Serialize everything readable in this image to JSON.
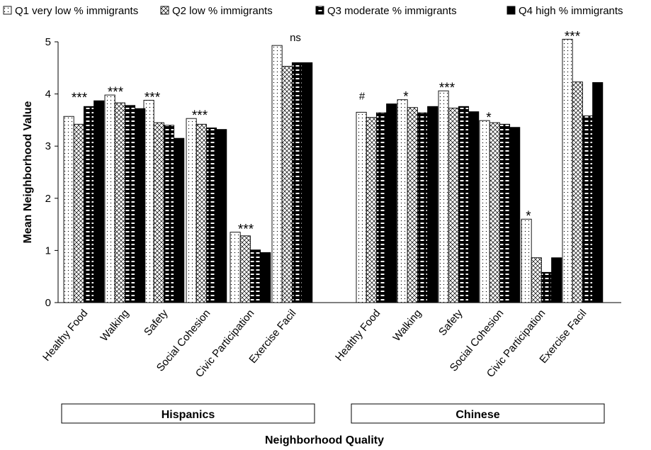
{
  "chart_data": {
    "type": "bar",
    "ylabel": "Mean Neighborhood Value",
    "xlabel": "Neighborhood Quality",
    "ylim": [
      0,
      5
    ],
    "yticks": [
      "0",
      "1",
      "2",
      "3",
      "4",
      "5"
    ],
    "legend_position": "top",
    "groups": [
      {
        "name": "Hispanics",
        "categories": [
          "Healthy Food",
          "Walking",
          "Safety",
          "Social Cohesion",
          "Civic Participation",
          "Exercise Facil"
        ],
        "annotations": [
          "***",
          "***",
          "***",
          "***",
          "***",
          "ns"
        ]
      },
      {
        "name": "Chinese",
        "categories": [
          "Healthy Food",
          "Walking",
          "Safety",
          "Social Cohesion",
          "Civic Participation",
          "Exercise Facil"
        ],
        "annotations": [
          "#",
          "*",
          "***",
          "*",
          "*",
          "***"
        ]
      }
    ],
    "series": [
      {
        "name": "Q1 very low % immigrants",
        "pattern": "dots",
        "values": [
          3.57,
          3.98,
          3.88,
          3.53,
          1.35,
          4.93,
          3.65,
          3.89,
          4.06,
          3.49,
          1.6,
          5.05
        ]
      },
      {
        "name": "Q2 low % immigrants",
        "pattern": "crosshatch",
        "values": [
          3.42,
          3.83,
          3.45,
          3.42,
          1.28,
          4.53,
          3.55,
          3.74,
          3.73,
          3.45,
          0.86,
          4.23
        ]
      },
      {
        "name": "Q3 moderate % immigrants",
        "pattern": "dashes",
        "values": [
          3.76,
          3.78,
          3.4,
          3.35,
          1.01,
          4.6,
          3.64,
          3.64,
          3.76,
          3.42,
          0.58,
          3.58
        ]
      },
      {
        "name": "Q4 high % immigrants",
        "pattern": "solid",
        "values": [
          3.87,
          3.72,
          3.15,
          3.32,
          0.96,
          4.6,
          3.81,
          3.76,
          3.66,
          3.36,
          0.86,
          4.22
        ]
      }
    ],
    "colors": {
      "bar_fill": "#ffffff",
      "solid": "#000000",
      "ink": "#000000"
    }
  }
}
